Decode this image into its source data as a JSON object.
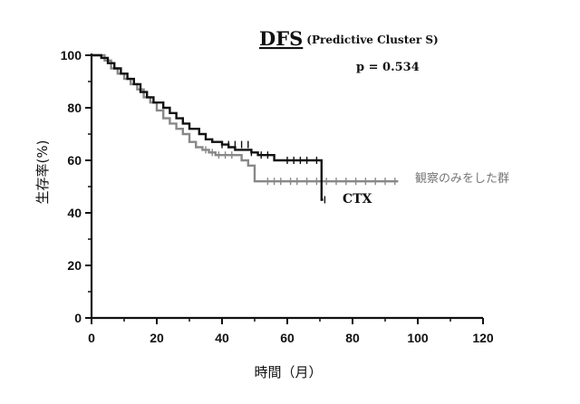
{
  "chart_data": {
    "type": "line",
    "title": "DFS",
    "subtitle": "(Predictive Cluster S)",
    "annotation": "p = 0.534",
    "xlabel": "時間（月）",
    "ylabel": "生存率(%)",
    "xlim": [
      0,
      120
    ],
    "ylim": [
      0,
      100
    ],
    "xticks": [
      "0",
      "20",
      "40",
      "60",
      "80",
      "100",
      "120"
    ],
    "yticks": [
      "0",
      "20",
      "40",
      "60",
      "80",
      "100"
    ],
    "grid": false,
    "series": [
      {
        "name": "CTX",
        "color": "#111111",
        "step": [
          [
            0,
            100
          ],
          [
            3,
            99
          ],
          [
            5,
            97
          ],
          [
            7,
            95
          ],
          [
            9,
            93
          ],
          [
            11,
            91
          ],
          [
            13,
            89
          ],
          [
            15,
            86
          ],
          [
            17,
            84
          ],
          [
            19,
            82
          ],
          [
            22,
            80
          ],
          [
            24,
            78
          ],
          [
            26,
            76
          ],
          [
            28,
            74
          ],
          [
            30,
            72
          ],
          [
            33,
            70
          ],
          [
            35,
            68
          ],
          [
            37,
            67
          ],
          [
            40,
            66
          ],
          [
            42,
            65
          ],
          [
            44,
            64
          ],
          [
            46,
            64
          ],
          [
            49,
            63
          ],
          [
            51,
            62
          ],
          [
            53,
            62
          ],
          [
            56,
            60
          ],
          [
            60,
            60
          ],
          [
            65,
            60
          ],
          [
            70,
            60
          ],
          [
            70.5,
            45
          ],
          [
            71,
            45
          ]
        ],
        "censor": [
          [
            40,
            66
          ],
          [
            42,
            66
          ],
          [
            44,
            66
          ],
          [
            46,
            66
          ],
          [
            48,
            66
          ],
          [
            49,
            63
          ],
          [
            52,
            62
          ],
          [
            54,
            62
          ],
          [
            60,
            60
          ],
          [
            62,
            60
          ],
          [
            64,
            60
          ],
          [
            66,
            60
          ],
          [
            69,
            60
          ],
          [
            70.5,
            46
          ],
          [
            71.5,
            45
          ]
        ]
      },
      {
        "name": "観察のみをした群",
        "color": "#888888",
        "step": [
          [
            0,
            100
          ],
          [
            4,
            98
          ],
          [
            6,
            95
          ],
          [
            8,
            93
          ],
          [
            10,
            91
          ],
          [
            12,
            89
          ],
          [
            14,
            87
          ],
          [
            16,
            84
          ],
          [
            18,
            82
          ],
          [
            20,
            79
          ],
          [
            22,
            76
          ],
          [
            24,
            74
          ],
          [
            26,
            72
          ],
          [
            28,
            70
          ],
          [
            30,
            67
          ],
          [
            32,
            65
          ],
          [
            34,
            64
          ],
          [
            36,
            63
          ],
          [
            38,
            62
          ],
          [
            44,
            62
          ],
          [
            46,
            60
          ],
          [
            48,
            58
          ],
          [
            50,
            52
          ],
          [
            60,
            52
          ],
          [
            70,
            52
          ],
          [
            80,
            52
          ],
          [
            90,
            52
          ],
          [
            94,
            52
          ]
        ],
        "censor": [
          [
            35,
            64
          ],
          [
            37,
            63
          ],
          [
            39,
            62
          ],
          [
            41,
            62
          ],
          [
            43,
            62
          ],
          [
            54,
            52
          ],
          [
            56,
            52
          ],
          [
            58,
            52
          ],
          [
            61,
            52
          ],
          [
            63,
            52
          ],
          [
            66,
            52
          ],
          [
            69,
            52
          ],
          [
            72,
            52
          ],
          [
            75,
            52
          ],
          [
            78,
            52
          ],
          [
            81,
            52
          ],
          [
            84,
            52
          ],
          [
            87,
            52
          ],
          [
            90,
            52
          ],
          [
            93,
            52
          ]
        ]
      }
    ]
  }
}
